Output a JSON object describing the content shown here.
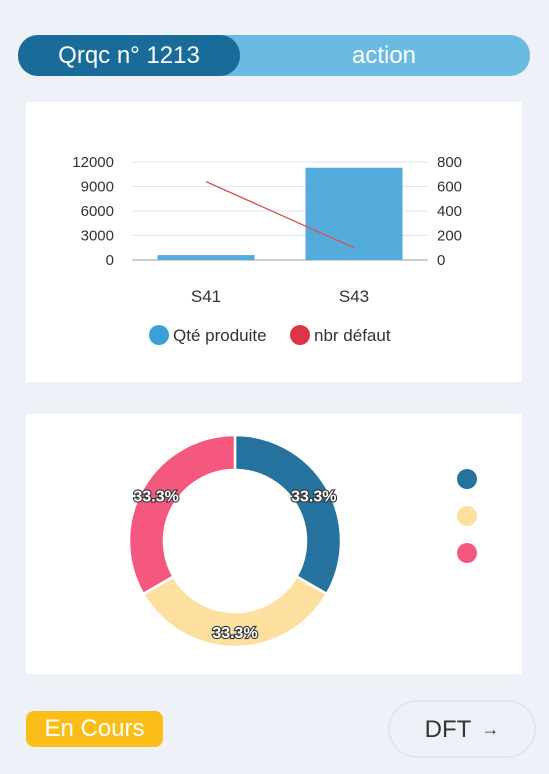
{
  "header": {
    "title": "Qrqc n° 1213",
    "action_label": "action"
  },
  "status": {
    "label": "En Cours"
  },
  "footer": {
    "dft_label": "DFT",
    "arrow": "→"
  },
  "colors": {
    "header_dark": "#196c9a",
    "header_light": "#6bbae2",
    "bar": "#53abdc",
    "line": "#d9534f",
    "legend_qte": "#36a2d8",
    "legend_defaut": "#dc3545",
    "status": "#fbbd18",
    "pie_blue": "#24729d",
    "pie_yellow": "#fde09f",
    "pie_pink": "#f4587f"
  },
  "chart_data": [
    {
      "type": "bar",
      "categories": [
        "S41",
        "S43"
      ],
      "series": [
        {
          "name": "Qté produite",
          "type": "bar",
          "axis": "left",
          "values": [
            600,
            11300
          ]
        },
        {
          "name": "nbr défaut",
          "type": "line",
          "axis": "right",
          "values": [
            640,
            100
          ]
        }
      ],
      "left_axis": {
        "ticks": [
          "12000",
          "9000",
          "6000",
          "3000",
          "0"
        ],
        "ylim": [
          0,
          12000
        ]
      },
      "right_axis": {
        "ticks": [
          "800",
          "600",
          "400",
          "200",
          "0"
        ],
        "ylim": [
          0,
          800
        ]
      },
      "legend": [
        "Qté produite",
        "nbr défaut"
      ],
      "legend_position": "bottom"
    },
    {
      "type": "pie",
      "style": "donut",
      "values": [
        33.3,
        33.3,
        33.3
      ],
      "labels_shown": [
        "33.3%",
        "33.3%",
        "33.3%"
      ],
      "colors": [
        "#24729d",
        "#fde09f",
        "#f4587f"
      ],
      "legend_position": "right"
    }
  ]
}
